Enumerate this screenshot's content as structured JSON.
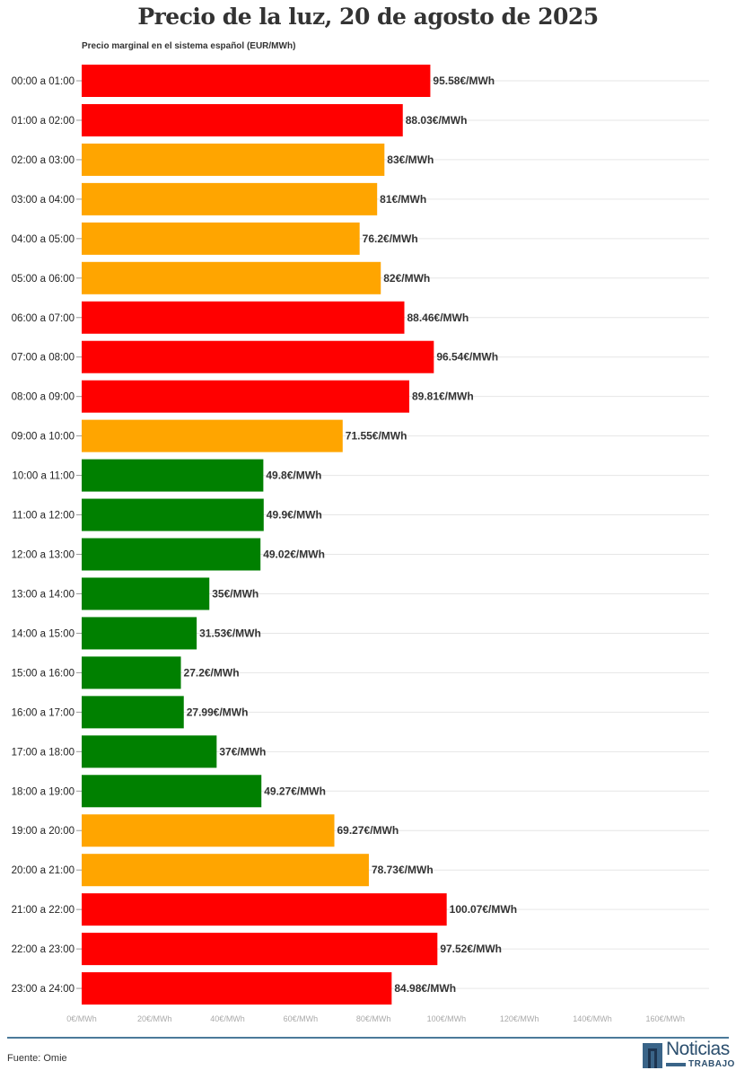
{
  "chart_data": {
    "type": "bar",
    "orientation": "horizontal",
    "title": "Precio de la luz, 20 de agosto de 2025",
    "subtitle": "Precio marginal en el sistema español (EUR/MWh)",
    "categories": [
      "00:00 a 01:00",
      "01:00 a 02:00",
      "02:00 a 03:00",
      "03:00 a 04:00",
      "04:00 a 05:00",
      "05:00 a 06:00",
      "06:00 a 07:00",
      "07:00 a 08:00",
      "08:00 a 09:00",
      "09:00 a 10:00",
      "10:00 a 11:00",
      "11:00 a 12:00",
      "12:00 a 13:00",
      "13:00 a 14:00",
      "14:00 a 15:00",
      "15:00 a 16:00",
      "16:00 a 17:00",
      "17:00 a 18:00",
      "18:00 a 19:00",
      "19:00 a 20:00",
      "20:00 a 21:00",
      "21:00 a 22:00",
      "22:00 a 23:00",
      "23:00 a 24:00"
    ],
    "values": [
      95.58,
      88.03,
      83,
      81,
      76.2,
      82,
      88.46,
      96.54,
      89.81,
      71.55,
      49.8,
      49.9,
      49.02,
      35,
      31.53,
      27.2,
      27.99,
      37,
      49.27,
      69.27,
      78.73,
      100.07,
      97.52,
      84.98
    ],
    "data_labels": [
      "95.58€/MWh",
      "88.03€/MWh",
      "83€/MWh",
      "81€/MWh",
      "76.2€/MWh",
      "82€/MWh",
      "88.46€/MWh",
      "96.54€/MWh",
      "89.81€/MWh",
      "71.55€/MWh",
      "49.8€/MWh",
      "49.9€/MWh",
      "49.02€/MWh",
      "35€/MWh",
      "31.53€/MWh",
      "27.2€/MWh",
      "27.99€/MWh",
      "37€/MWh",
      "49.27€/MWh",
      "69.27€/MWh",
      "78.73€/MWh",
      "100.07€/MWh",
      "97.52€/MWh",
      "84.98€/MWh"
    ],
    "bar_levels": [
      "high",
      "high",
      "mid",
      "mid",
      "mid",
      "mid",
      "high",
      "high",
      "high",
      "mid",
      "low",
      "low",
      "low",
      "low",
      "low",
      "low",
      "low",
      "low",
      "low",
      "mid",
      "mid",
      "high",
      "high",
      "high"
    ],
    "level_colors": {
      "high": "#ff0000",
      "mid": "#ffa500",
      "low": "#008000"
    },
    "xticks": [
      0,
      20,
      40,
      60,
      80,
      100,
      120,
      140,
      160
    ],
    "xtick_labels": [
      "0€/MWh",
      "20€/MWh",
      "40€/MWh",
      "60€/MWh",
      "80€/MWh",
      "100€/MWh",
      "120€/MWh",
      "140€/MWh",
      "160€/MWh"
    ],
    "xlim": [
      0,
      172
    ],
    "grid": true
  },
  "footer": {
    "source": "Fuente: Omie",
    "logo_text": "Noticias",
    "logo_subtext": "TRABAJO"
  }
}
